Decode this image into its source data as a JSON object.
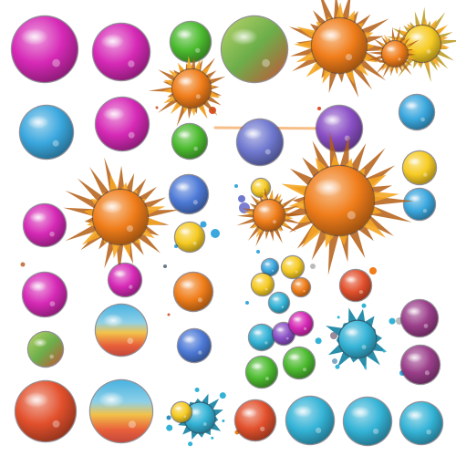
{
  "sheet": {
    "background": "#ffffff",
    "style": "watercolor-sprite-sheet"
  },
  "palette": {
    "magenta": "#d629b6",
    "blue": "#3aa7de",
    "green": "#4cbb2f",
    "orange": "#f07d1a",
    "yellow": "#f6cb24",
    "purple": "#8a4fc5",
    "plum": "#9a3e8a",
    "cyan": "#34b3d6",
    "red": "#e2502c",
    "periwinkle": "#6f78cf",
    "royal": "#4d7ad7",
    "rainbow": "rainbow",
    "green-red": "green-red"
  },
  "sprites": [
    {
      "kind": "orb",
      "color": "magenta"
    },
    {
      "kind": "orb",
      "color": "magenta"
    },
    {
      "kind": "orb",
      "color": "green"
    },
    {
      "kind": "orb",
      "color": "green-red"
    },
    {
      "kind": "burst",
      "color": "orange"
    },
    {
      "kind": "burst",
      "color": "orange"
    },
    {
      "kind": "burst",
      "color": "yellow"
    },
    {
      "kind": "burst",
      "color": "orange"
    },
    {
      "kind": "orb",
      "color": "blue"
    },
    {
      "kind": "orb",
      "color": "magenta"
    },
    {
      "kind": "orb",
      "color": "green"
    },
    {
      "kind": "orb",
      "color": "periwinkle"
    },
    {
      "kind": "orb",
      "color": "purple"
    },
    {
      "kind": "orb",
      "color": "blue"
    },
    {
      "kind": "orb",
      "color": "royal"
    },
    {
      "kind": "orb",
      "color": "yellow"
    },
    {
      "kind": "orb",
      "color": "yellow"
    },
    {
      "kind": "orb",
      "color": "blue"
    },
    {
      "kind": "orb",
      "color": "magenta"
    },
    {
      "kind": "burst",
      "color": "orange"
    },
    {
      "kind": "burst",
      "color": "orange"
    },
    {
      "kind": "orb",
      "color": "yellow"
    },
    {
      "kind": "burst",
      "color": "orange"
    },
    {
      "kind": "orb",
      "color": "magenta"
    },
    {
      "kind": "orb",
      "color": "magenta"
    },
    {
      "kind": "orb",
      "color": "orange"
    },
    {
      "kind": "orb",
      "color": "blue"
    },
    {
      "kind": "orb",
      "color": "yellow"
    },
    {
      "kind": "orb",
      "color": "orange"
    },
    {
      "kind": "orb",
      "color": "yellow"
    },
    {
      "kind": "orb",
      "color": "cyan"
    },
    {
      "kind": "orb",
      "color": "red"
    },
    {
      "kind": "orb",
      "color": "plum"
    },
    {
      "kind": "orb",
      "color": "green-red"
    },
    {
      "kind": "orb",
      "color": "rainbow"
    },
    {
      "kind": "orb",
      "color": "royal"
    },
    {
      "kind": "orb",
      "color": "cyan"
    },
    {
      "kind": "orb",
      "color": "purple"
    },
    {
      "kind": "orb",
      "color": "magenta"
    },
    {
      "kind": "splat",
      "color": "cyan"
    },
    {
      "kind": "orb",
      "color": "plum"
    },
    {
      "kind": "orb",
      "color": "green"
    },
    {
      "kind": "orb",
      "color": "green"
    },
    {
      "kind": "orb",
      "color": "red"
    },
    {
      "kind": "orb",
      "color": "rainbow"
    },
    {
      "kind": "splat",
      "color": "cyan"
    },
    {
      "kind": "orb",
      "color": "yellow"
    },
    {
      "kind": "orb",
      "color": "red"
    },
    {
      "kind": "orb",
      "color": "cyan"
    },
    {
      "kind": "orb",
      "color": "cyan"
    },
    {
      "kind": "orb",
      "color": "cyan"
    }
  ]
}
